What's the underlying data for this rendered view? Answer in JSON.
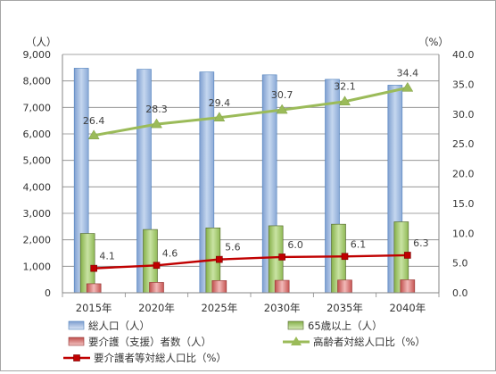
{
  "chart_data": {
    "type": "bar",
    "categories": [
      "2015年",
      "2020年",
      "2025年",
      "2030年",
      "2035年",
      "2040年"
    ],
    "y_left": {
      "unit": "（人）",
      "ylim": [
        0,
        9000
      ],
      "ticks": [
        "0",
        "1,000",
        "2,000",
        "3,000",
        "4,000",
        "5,000",
        "6,000",
        "7,000",
        "8,000",
        "9,000"
      ],
      "tick_values": [
        0,
        1000,
        2000,
        3000,
        4000,
        5000,
        6000,
        7000,
        8000,
        9000
      ]
    },
    "y_right": {
      "unit": "（%）",
      "ylim": [
        0,
        40
      ],
      "ticks": [
        "0.0",
        "5.0",
        "10.0",
        "15.0",
        "20.0",
        "25.0",
        "30.0",
        "35.0",
        "40.0"
      ],
      "tick_values": [
        0,
        5,
        10,
        15,
        20,
        25,
        30,
        35,
        40
      ]
    },
    "series": [
      {
        "name": "総人口（人）",
        "type": "bar",
        "axis": "left",
        "color": "#95b3d7",
        "values": [
          8480,
          8440,
          8340,
          8230,
          8060,
          7840
        ]
      },
      {
        "name": "65歳以上（人）",
        "type": "bar",
        "axis": "left",
        "color": "#9bbb59",
        "values": [
          2240,
          2390,
          2450,
          2530,
          2590,
          2680
        ]
      },
      {
        "name": "要介護（支援）者数（人）",
        "type": "bar",
        "axis": "left",
        "color": "#c0504d",
        "values": [
          340,
          390,
          460,
          470,
          480,
          490
        ]
      },
      {
        "name": "高齢者対総人口比（%）",
        "type": "line",
        "axis": "right",
        "color": "#9bbb59",
        "marker": "triangle",
        "values": [
          26.4,
          28.3,
          29.4,
          30.7,
          32.1,
          34.4
        ],
        "labels": [
          "26.4",
          "28.3",
          "29.4",
          "30.7",
          "32.1",
          "34.4"
        ]
      },
      {
        "name": "要介護者等対総人口比（%）",
        "type": "line",
        "axis": "right",
        "color": "#c00000",
        "marker": "square",
        "values": [
          4.1,
          4.6,
          5.6,
          6.0,
          6.1,
          6.3
        ],
        "labels": [
          "4.1",
          "4.6",
          "5.6",
          "6.0",
          "6.1",
          "6.3"
        ]
      }
    ],
    "grid": true,
    "legend_position": "bottom"
  }
}
